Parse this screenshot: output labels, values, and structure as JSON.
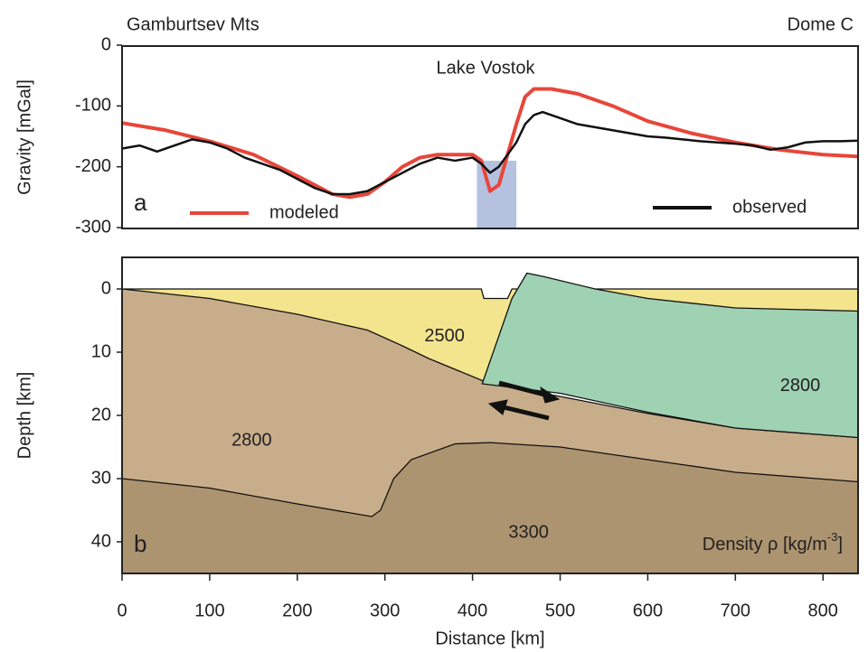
{
  "chart_data": [
    {
      "type": "line",
      "left_title": "Gamburtsev Mts",
      "right_title": "Dome C",
      "annotation": "Lake Vostok",
      "panel_label": "a",
      "y_label": "Gravity [mGal]",
      "xlim": [
        0,
        840
      ],
      "ylim": [
        -300,
        0
      ],
      "yticks": [
        0,
        -100,
        -200,
        -300
      ],
      "shade": {
        "x": [
          405,
          450
        ],
        "y": [
          -300,
          -190
        ],
        "color": "#b4c2e0"
      },
      "series": [
        {
          "name": "modeled",
          "color": "#e8463a",
          "x": [
            0,
            50,
            100,
            150,
            200,
            240,
            260,
            280,
            300,
            320,
            340,
            360,
            400,
            410,
            420,
            430,
            440,
            450,
            460,
            470,
            490,
            520,
            560,
            600,
            650,
            700,
            750,
            800,
            840
          ],
          "values": [
            -128,
            -140,
            -158,
            -180,
            -215,
            -245,
            -250,
            -245,
            -225,
            -200,
            -185,
            -180,
            -180,
            -190,
            -240,
            -230,
            -180,
            -130,
            -85,
            -72,
            -72,
            -80,
            -100,
            -125,
            -145,
            -160,
            -172,
            -180,
            -183
          ]
        },
        {
          "name": "observed",
          "color": "#111111",
          "x": [
            0,
            20,
            40,
            60,
            80,
            100,
            120,
            140,
            160,
            180,
            200,
            220,
            240,
            260,
            280,
            300,
            320,
            340,
            360,
            380,
            400,
            410,
            420,
            430,
            440,
            450,
            460,
            470,
            480,
            500,
            520,
            540,
            560,
            580,
            600,
            620,
            640,
            660,
            680,
            700,
            720,
            740,
            760,
            780,
            800,
            820,
            840
          ],
          "values": [
            -170,
            -165,
            -175,
            -165,
            -155,
            -160,
            -170,
            -185,
            -195,
            -205,
            -220,
            -235,
            -245,
            -245,
            -240,
            -225,
            -210,
            -195,
            -185,
            -190,
            -185,
            -195,
            -210,
            -200,
            -180,
            -160,
            -130,
            -115,
            -110,
            -120,
            -130,
            -135,
            -140,
            -145,
            -150,
            -152,
            -155,
            -158,
            -160,
            -162,
            -165,
            -172,
            -168,
            -160,
            -158,
            -158,
            -157
          ]
        }
      ]
    },
    {
      "type": "section",
      "panel_label": "b",
      "x_label": "Distance [km]",
      "y_label": "Depth [km]",
      "density_label": {
        "text": "Density ρ [kg/m",
        "sup": "-3",
        "end": "]"
      },
      "xlim": [
        0,
        840
      ],
      "xticks": [
        0,
        100,
        200,
        300,
        400,
        500,
        600,
        700,
        800
      ],
      "ylim": [
        45,
        -5
      ],
      "yticks": [
        0,
        10,
        20,
        30,
        40
      ],
      "regions": [
        {
          "color": "#f3e48e",
          "x": [
            0,
            410,
            413,
            440,
            445,
            840,
            840,
            420,
            0
          ],
          "y": [
            0,
            0,
            1.5,
            1.5,
            0,
            0,
            4,
            15,
            15
          ]
        },
        {
          "color": "#c8ad8a",
          "x": [
            0,
            100,
            200,
            280,
            320,
            350,
            420,
            500,
            600,
            700,
            840,
            840,
            0
          ],
          "y": [
            0,
            1.5,
            4,
            6.5,
            9,
            11,
            15,
            17,
            19.7,
            22,
            23.5,
            45,
            45
          ]
        },
        {
          "color": "#9fd1b3",
          "x": [
            445,
            462,
            480,
            540,
            600,
            700,
            840,
            840,
            700,
            600,
            500,
            411
          ],
          "y": [
            1.5,
            -2.5,
            -2,
            0,
            1.5,
            3,
            3.5,
            23.5,
            22,
            19.5,
            16.5,
            15
          ]
        },
        {
          "color": "#ad9470",
          "x": [
            0,
            100,
            200,
            285,
            295,
            310,
            330,
            380,
            420,
            500,
            600,
            700,
            840,
            840,
            0
          ],
          "y": [
            30,
            31.5,
            34,
            36,
            35,
            30,
            27,
            24.5,
            24.3,
            25,
            27,
            29,
            30.5,
            45,
            45
          ]
        }
      ],
      "annotations": [
        {
          "text": "2500",
          "x": 368,
          "y": 7.5
        },
        {
          "text": "2800",
          "x": 774,
          "y": 15.4
        },
        {
          "text": "2800",
          "x": 148,
          "y": 24
        },
        {
          "text": "3300",
          "x": 464,
          "y": 38.6
        }
      ]
    }
  ]
}
